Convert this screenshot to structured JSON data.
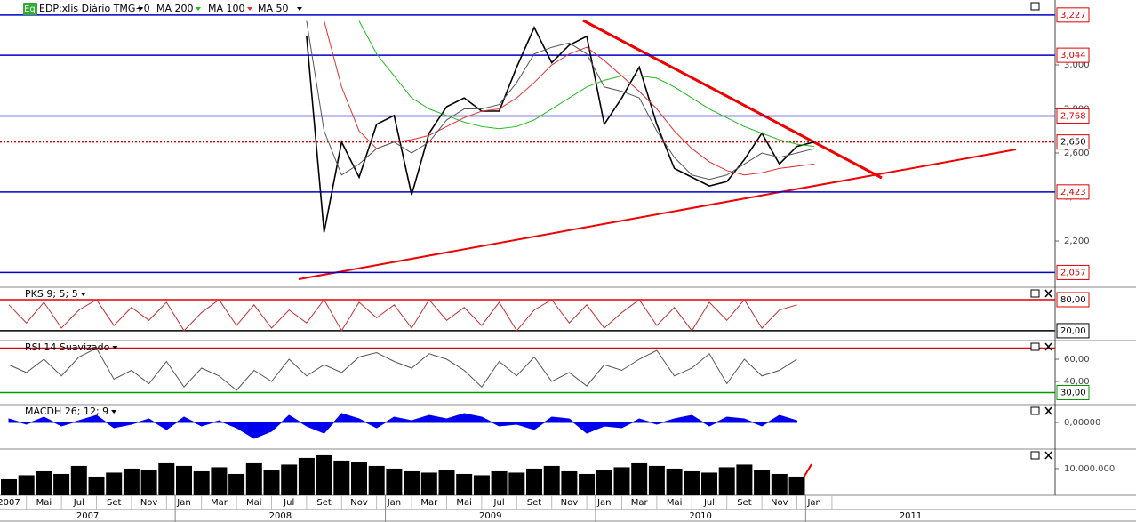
{
  "chart_data": [
    {
      "type": "line",
      "title": "EDP:xlis Diário TMG+0",
      "icon_label": "Eq",
      "x": [
        "2008-08",
        "2008-09",
        "2008-10",
        "2008-11",
        "2008-12",
        "2009-01",
        "2009-02",
        "2009-03",
        "2009-04",
        "2009-05",
        "2009-06",
        "2009-07",
        "2009-08",
        "2009-09",
        "2009-10",
        "2009-11",
        "2009-12",
        "2010-01",
        "2010-02",
        "2010-03",
        "2010-04",
        "2010-05",
        "2010-06",
        "2010-07",
        "2010-08",
        "2010-09",
        "2010-10",
        "2010-11",
        "2010-12",
        "2011-01"
      ],
      "series": [
        {
          "color": "#000000",
          "values": [
            3.13,
            2.24,
            2.65,
            2.49,
            2.73,
            2.77,
            2.41,
            2.69,
            2.81,
            2.85,
            2.79,
            2.79,
            2.99,
            3.17,
            3.01,
            3.09,
            3.13,
            2.73,
            2.85,
            2.99,
            2.73,
            2.53,
            2.49,
            2.45,
            2.47,
            2.57,
            2.69,
            2.55,
            2.63,
            2.65
          ]
        },
        {
          "name": "MA 200",
          "color": "#22bb22",
          "values": [
            null,
            null,
            null,
            3.2,
            3.05,
            2.95,
            2.85,
            2.8,
            2.77,
            2.74,
            2.72,
            2.71,
            2.72,
            2.75,
            2.8,
            2.85,
            2.9,
            2.93,
            2.95,
            2.95,
            2.94,
            2.9,
            2.85,
            2.8,
            2.76,
            2.72,
            2.69,
            2.66,
            2.64,
            2.63
          ]
        },
        {
          "name": "MA 100",
          "color": "#e03030",
          "values": [
            null,
            3.2,
            2.9,
            2.7,
            2.62,
            2.65,
            2.66,
            2.68,
            2.72,
            2.76,
            2.79,
            2.8,
            2.85,
            2.92,
            3.0,
            3.05,
            3.08,
            3.02,
            2.95,
            2.88,
            2.8,
            2.7,
            2.62,
            2.56,
            2.52,
            2.5,
            2.51,
            2.53,
            2.54,
            2.55
          ]
        },
        {
          "name": "MA 50",
          "color": "#555555",
          "values": [
            3.2,
            2.7,
            2.5,
            2.55,
            2.62,
            2.65,
            2.6,
            2.65,
            2.75,
            2.8,
            2.8,
            2.82,
            2.92,
            3.05,
            3.08,
            3.1,
            3.05,
            2.9,
            2.88,
            2.85,
            2.7,
            2.58,
            2.5,
            2.48,
            2.5,
            2.55,
            2.6,
            2.58,
            2.6,
            2.62
          ]
        }
      ],
      "ylim": [
        1.99,
        3.295
      ],
      "yticks": [
        {
          "value": 3,
          "label": "3,000"
        },
        {
          "value": 2.8,
          "label": "2,800"
        },
        {
          "value": 2.6,
          "label": "2,600"
        },
        {
          "value": 2.4,
          "label": "2,400"
        },
        {
          "value": 2.2,
          "label": "2,200"
        }
      ],
      "levels": [
        {
          "value": 3.227,
          "label": "3,227",
          "color": "#0000cc"
        },
        {
          "value": 3.044,
          "label": "3,044",
          "color": "#0000cc"
        },
        {
          "value": 2.768,
          "label": "2,768",
          "color": "#0000cc"
        },
        {
          "value": 2.423,
          "label": "2,423",
          "color": "#0000cc"
        },
        {
          "value": 2.057,
          "label": "2,057",
          "color": "#0000cc"
        }
      ],
      "current": {
        "value": 2.65,
        "label": "2,650",
        "color": "#e00000"
      }
    },
    {
      "type": "line",
      "title": "PKS 9; 5; 5",
      "x": [
        "2007-03",
        "2007-04",
        "2007-05",
        "2007-06",
        "2007-07",
        "2007-08",
        "2007-09",
        "2007-10",
        "2007-11",
        "2007-12",
        "2008-01",
        "2008-02",
        "2008-03",
        "2008-04",
        "2008-05",
        "2008-06",
        "2008-07",
        "2008-08",
        "2008-09",
        "2008-10",
        "2008-11",
        "2008-12",
        "2009-01",
        "2009-02",
        "2009-03",
        "2009-04",
        "2009-05",
        "2009-06",
        "2009-07",
        "2009-08",
        "2009-09",
        "2009-10",
        "2009-11",
        "2009-12",
        "2010-01",
        "2010-02",
        "2010-03",
        "2010-04",
        "2010-05",
        "2010-06",
        "2010-07",
        "2010-08",
        "2010-09",
        "2010-10",
        "2010-11",
        "2010-12"
      ],
      "series": [
        {
          "color": "#c03030",
          "values": [
            70,
            35,
            75,
            25,
            60,
            80,
            30,
            65,
            40,
            75,
            20,
            55,
            80,
            30,
            70,
            25,
            60,
            35,
            80,
            20,
            75,
            45,
            70,
            25,
            80,
            40,
            65,
            30,
            75,
            20,
            60,
            80,
            35,
            70,
            25,
            55,
            80,
            30,
            65,
            20,
            75,
            40,
            80,
            25,
            60,
            70
          ]
        }
      ],
      "ylim": [
        1,
        104
      ],
      "levels": [
        {
          "value": 80,
          "label": "80,00",
          "color": "#e00000"
        },
        {
          "value": 20,
          "label": "20,00",
          "color": "#000000"
        }
      ]
    },
    {
      "type": "line",
      "title": "RSI 14 Suavizado",
      "x": [
        "2007-03",
        "2007-04",
        "2007-05",
        "2007-06",
        "2007-07",
        "2007-08",
        "2007-09",
        "2007-10",
        "2007-11",
        "2007-12",
        "2008-01",
        "2008-02",
        "2008-03",
        "2008-04",
        "2008-05",
        "2008-06",
        "2008-07",
        "2008-08",
        "2008-09",
        "2008-10",
        "2008-11",
        "2008-12",
        "2009-01",
        "2009-02",
        "2009-03",
        "2009-04",
        "2009-05",
        "2009-06",
        "2009-07",
        "2009-08",
        "2009-09",
        "2009-10",
        "2009-11",
        "2009-12",
        "2010-01",
        "2010-02",
        "2010-03",
        "2010-04",
        "2010-05",
        "2010-06",
        "2010-07",
        "2010-08",
        "2010-09",
        "2010-10",
        "2010-11",
        "2010-12"
      ],
      "series": [
        {
          "color": "#555555",
          "values": [
            55,
            48,
            60,
            45,
            62,
            70,
            42,
            50,
            38,
            58,
            35,
            52,
            45,
            32,
            50,
            40,
            60,
            45,
            55,
            48,
            62,
            66,
            58,
            52,
            65,
            60,
            50,
            35,
            58,
            45,
            62,
            40,
            48,
            36,
            55,
            50,
            60,
            68,
            45,
            52,
            65,
            38,
            60,
            45,
            50,
            60
          ]
        }
      ],
      "ylim": [
        19.2,
        76.8
      ],
      "yticks": [
        {
          "value": 60,
          "label": "60,00"
        },
        {
          "value": 40,
          "label": "40,00"
        }
      ],
      "levels": [
        {
          "value": 70,
          "color": "#e00000"
        },
        {
          "value": 30,
          "label": "30,00",
          "color": "#009900"
        }
      ]
    },
    {
      "type": "area",
      "title": "MACDH 26; 12; 9",
      "x": [
        "2007-03",
        "2007-04",
        "2007-05",
        "2007-06",
        "2007-07",
        "2007-08",
        "2007-09",
        "2007-10",
        "2007-11",
        "2007-12",
        "2008-01",
        "2008-02",
        "2008-03",
        "2008-04",
        "2008-05",
        "2008-06",
        "2008-07",
        "2008-08",
        "2008-09",
        "2008-10",
        "2008-11",
        "2008-12",
        "2009-01",
        "2009-02",
        "2009-03",
        "2009-04",
        "2009-05",
        "2009-06",
        "2009-07",
        "2009-08",
        "2009-09",
        "2009-10",
        "2009-11",
        "2009-12",
        "2010-01",
        "2010-02",
        "2010-03",
        "2010-04",
        "2010-05",
        "2010-06",
        "2010-07",
        "2010-08",
        "2010-09",
        "2010-10",
        "2010-11",
        "2010-12"
      ],
      "series": [
        {
          "color": "#0000ee",
          "values": [
            0.02,
            -0.01,
            0.03,
            -0.02,
            0.01,
            0.04,
            -0.03,
            -0.01,
            0.02,
            -0.04,
            0.03,
            -0.02,
            0.01,
            -0.03,
            -0.09,
            -0.05,
            0.04,
            -0.02,
            -0.06,
            0.05,
            0.02,
            -0.03,
            0.03,
            0.01,
            0.04,
            0.02,
            0.05,
            0.03,
            -0.02,
            -0.01,
            -0.04,
            0.03,
            0.02,
            -0.06,
            -0.02,
            -0.03,
            0.02,
            -0.01,
            0.02,
            0.04,
            -0.02,
            0.03,
            0.02,
            -0.02,
            0.04,
            0.01
          ]
        }
      ],
      "ylim": [
        -0.15,
        0.1
      ],
      "yticks": [
        {
          "value": 0,
          "label": "0,00000"
        }
      ]
    },
    {
      "type": "bar",
      "x": [
        "2007-03",
        "2007-04",
        "2007-05",
        "2007-06",
        "2007-07",
        "2007-08",
        "2007-09",
        "2007-10",
        "2007-11",
        "2007-12",
        "2008-01",
        "2008-02",
        "2008-03",
        "2008-04",
        "2008-05",
        "2008-06",
        "2008-07",
        "2008-08",
        "2008-09",
        "2008-10",
        "2008-11",
        "2008-12",
        "2009-01",
        "2009-02",
        "2009-03",
        "2009-04",
        "2009-05",
        "2009-06",
        "2009-07",
        "2009-08",
        "2009-09",
        "2009-10",
        "2009-11",
        "2009-12",
        "2010-01",
        "2010-02",
        "2010-03",
        "2010-04",
        "2010-05",
        "2010-06",
        "2010-07",
        "2010-08",
        "2010-09",
        "2010-10",
        "2010-11",
        "2010-12"
      ],
      "series": [
        {
          "color": "#000000",
          "values": [
            6000000,
            7500000,
            9000000,
            8000000,
            11000000,
            7000000,
            8500000,
            10000000,
            9500000,
            12000000,
            11000000,
            9000000,
            10500000,
            8000000,
            12000000,
            9500000,
            11500000,
            14000000,
            15000000,
            13000000,
            12500000,
            11000000,
            10000000,
            9000000,
            8500000,
            9500000,
            8000000,
            7500000,
            9000000,
            8500000,
            10000000,
            11000000,
            9000000,
            8000000,
            9500000,
            10500000,
            12000000,
            11000000,
            10000000,
            9000000,
            8500000,
            10500000,
            11500000,
            9500000,
            8000000,
            7000000
          ]
        }
      ],
      "ylim": [
        0,
        17300000
      ],
      "yticks": [
        {
          "value": 10000000,
          "label": "10.000.000"
        }
      ]
    }
  ],
  "time_axis": {
    "months": [
      "2007",
      "Mai",
      "Jul",
      "Set",
      "Nov",
      "Jan",
      "Mar",
      "Mai",
      "Jul",
      "Set",
      "Nov",
      "Jan",
      "Mar",
      "Mai",
      "Jul",
      "Set",
      "Nov",
      "Jan",
      "Mar",
      "Mai",
      "Jul",
      "Set",
      "Nov",
      "Jan"
    ],
    "years": [
      "2007",
      "2008",
      "2009",
      "2010",
      "2011"
    ]
  }
}
